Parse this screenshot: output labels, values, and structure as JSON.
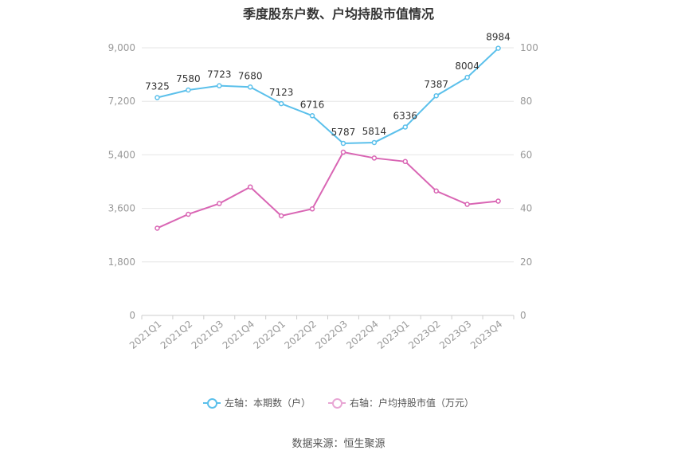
{
  "chart_data": {
    "type": "line",
    "title": "季度股东户数、户均持股市值情况",
    "categories": [
      "2021Q1",
      "2021Q2",
      "2021Q3",
      "2021Q4",
      "2022Q1",
      "2022Q2",
      "2022Q3",
      "2022Q4",
      "2023Q1",
      "2023Q2",
      "2023Q3",
      "2023Q4"
    ],
    "series": [
      {
        "name": "左轴：本期数（户）",
        "axis": "left",
        "color": "#5bc0eb",
        "values": [
          7325,
          7580,
          7723,
          7680,
          7123,
          6716,
          5787,
          5814,
          6336,
          7387,
          8004,
          8984
        ],
        "show_labels": true
      },
      {
        "name": "右轴：户均持股市值（万元）",
        "axis": "right",
        "color": "#d966b4",
        "values": [
          32.6,
          37.8,
          41.8,
          48.0,
          37.2,
          39.8,
          61.0,
          58.8,
          57.5,
          46.5,
          41.5,
          42.7
        ],
        "show_labels": false
      }
    ],
    "y_left": {
      "min": 0,
      "max": 9000,
      "ticks": [
        0,
        1800,
        3600,
        5400,
        7200,
        9000
      ],
      "tick_labels": [
        "0",
        "1,800",
        "3,600",
        "5,400",
        "7,200",
        "9,000"
      ]
    },
    "y_right": {
      "min": 0,
      "max": 100,
      "ticks": [
        0,
        20,
        40,
        60,
        80,
        100
      ],
      "tick_labels": [
        "0",
        "20",
        "40",
        "60",
        "80",
        "100"
      ]
    },
    "grid": true,
    "legend_position": "bottom"
  },
  "source": "数据来源：恒生聚源"
}
